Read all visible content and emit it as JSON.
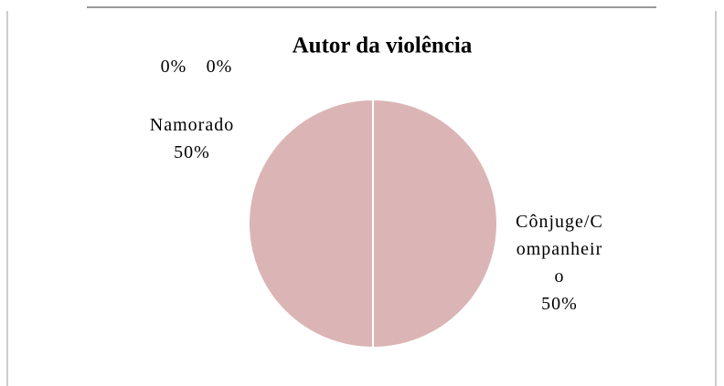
{
  "chart_data": {
    "type": "pie",
    "title": "Autor da violência",
    "categories": [
      "Cônjuge/Companheiro",
      "Namorado",
      null,
      null
    ],
    "values": [
      50,
      50,
      0,
      0
    ],
    "value_labels": [
      "50%",
      "50%",
      "0%",
      "0%"
    ],
    "colors": [
      "#dbb5b5",
      "#dbb5b5",
      "#dbb5b5",
      "#dbb5b5"
    ]
  }
}
